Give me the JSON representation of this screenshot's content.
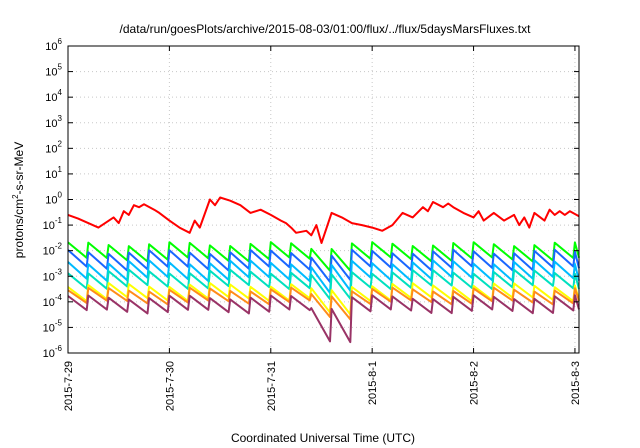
{
  "chart_data": {
    "type": "line",
    "title": "/data/run/goesPlots/archive/2015-08-03/01:00/flux/../flux/5daysMarsFluxes.txt",
    "xlabel": "Coordinated Universal Time (UTC)",
    "ylabel": "protons/cm²-s-sr-MeV",
    "ylabel_parts": {
      "before": "protons/cm",
      "sup": "2",
      "after": "-s-sr-MeV"
    },
    "yscale": "log",
    "ylim": [
      1e-06,
      1000000.0
    ],
    "y_tick_exponents": [
      -6,
      -5,
      -4,
      -3,
      -2,
      -1,
      0,
      1,
      2,
      3,
      4,
      5,
      6
    ],
    "y_tick_base": "10",
    "xlim": [
      "2015-07-29",
      "2015-08-03 01:00"
    ],
    "x_ticks": [
      "2015-7-29",
      "2015-7-30",
      "2015-7-31",
      "2015-8-1",
      "2015-8-2",
      "2015-8-3"
    ],
    "x_tick_days": [
      0,
      1,
      2,
      3,
      4,
      5
    ],
    "x_max_day": 5.04,
    "grid": true,
    "legend": "none",
    "sawtooth_period_days": 0.2,
    "series": [
      {
        "color": "#ff0000",
        "x_days": [
          0,
          0.1,
          0.3,
          0.45,
          0.5,
          0.55,
          0.6,
          0.65,
          0.7,
          0.75,
          0.85,
          0.9,
          1.0,
          1.1,
          1.2,
          1.25,
          1.3,
          1.4,
          1.45,
          1.5,
          1.6,
          1.7,
          1.8,
          1.9,
          2.0,
          2.1,
          2.15,
          2.2,
          2.25,
          2.35,
          2.4,
          2.45,
          2.5,
          2.6,
          2.7,
          2.8,
          2.9,
          3.0,
          3.1,
          3.2,
          3.3,
          3.4,
          3.5,
          3.55,
          3.6,
          3.7,
          3.75,
          3.8,
          3.9,
          4.0,
          4.05,
          4.1,
          4.2,
          4.3,
          4.4,
          4.45,
          4.5,
          4.55,
          4.6,
          4.7,
          4.75,
          4.8,
          4.85,
          4.9,
          4.95,
          5.04
        ],
        "values": [
          0.25,
          0.18,
          0.08,
          0.2,
          0.12,
          0.35,
          0.25,
          0.6,
          0.5,
          0.65,
          0.4,
          0.3,
          0.15,
          0.08,
          0.05,
          0.15,
          0.08,
          1.0,
          0.6,
          1.2,
          0.9,
          0.6,
          0.3,
          0.4,
          0.25,
          0.15,
          0.12,
          0.08,
          0.05,
          0.06,
          0.04,
          0.1,
          0.02,
          0.3,
          0.2,
          0.12,
          0.1,
          0.08,
          0.06,
          0.1,
          0.3,
          0.2,
          0.5,
          0.35,
          0.8,
          0.5,
          0.7,
          0.5,
          0.3,
          0.2,
          0.35,
          0.15,
          0.3,
          0.15,
          0.25,
          0.1,
          0.2,
          0.08,
          0.3,
          0.15,
          0.4,
          0.25,
          0.35,
          0.25,
          0.35,
          0.22
        ]
      },
      {
        "color": "#00ff00",
        "base": 0.018,
        "amp_decades": 0.6,
        "dip_decades": 0.25
      },
      {
        "color": "#1a66ff",
        "base": 0.009,
        "amp_decades": 0.65,
        "dip_decades": 0.3
      },
      {
        "color": "#00bbff",
        "base": 0.0035,
        "amp_decades": 0.65,
        "dip_decades": 0.35
      },
      {
        "color": "#00e0c0",
        "base": 0.0015,
        "amp_decades": 0.6,
        "dip_decades": 0.35
      },
      {
        "color": "#ffff00",
        "base": 0.00045,
        "amp_decades": 0.55,
        "dip_decades": 0.4
      },
      {
        "color": "#ff8c1a",
        "base": 0.0003,
        "amp_decades": 0.5,
        "dip_decades": 0.4
      },
      {
        "color": "#993366",
        "base": 0.00015,
        "amp_decades": 0.55,
        "dip_decades": 0.75
      }
    ],
    "global_dip": {
      "center_day": 2.6,
      "width_days": 0.12
    }
  }
}
